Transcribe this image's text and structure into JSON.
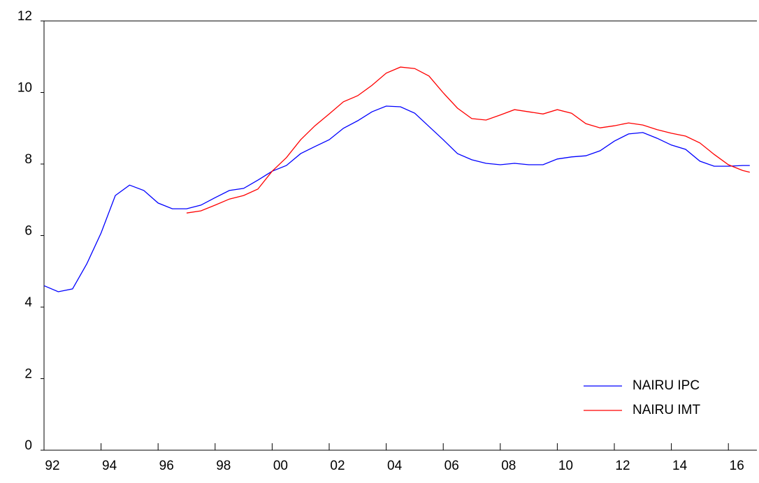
{
  "chart_data": {
    "type": "line",
    "x": [
      1992,
      1992.5,
      1993,
      1993.5,
      1994,
      1994.5,
      1995,
      1995.5,
      1996,
      1996.5,
      1997,
      1997.5,
      1998,
      1998.5,
      1999,
      1999.5,
      2000,
      2000.5,
      2001,
      2001.5,
      2002,
      2002.5,
      2003,
      2003.5,
      2004,
      2004.5,
      2005,
      2005.5,
      2006,
      2006.5,
      2007,
      2007.5,
      2008,
      2008.5,
      2009,
      2009.5,
      2010,
      2010.5,
      2011,
      2011.5,
      2012,
      2012.5,
      2013,
      2013.5,
      2014,
      2014.5,
      2015,
      2015.5,
      2016,
      2016.5,
      2016.75
    ],
    "series": [
      {
        "name": "NAIRU IPC",
        "color": "#0000ff",
        "values": [
          4.6,
          4.43,
          4.51,
          5.21,
          6.07,
          7.12,
          7.41,
          7.26,
          6.91,
          6.75,
          6.75,
          6.85,
          7.06,
          7.26,
          7.32,
          7.55,
          7.8,
          7.96,
          8.29,
          8.49,
          8.68,
          9.0,
          9.21,
          9.46,
          9.62,
          9.6,
          9.42,
          9.05,
          8.68,
          8.29,
          8.12,
          8.02,
          7.98,
          8.02,
          7.98,
          7.98,
          8.14,
          8.2,
          8.23,
          8.37,
          8.64,
          8.84,
          8.88,
          8.72,
          8.53,
          8.41,
          8.08,
          7.94,
          7.94,
          7.96,
          7.96
        ]
      },
      {
        "name": "NAIRU IMT",
        "color": "#ff0000",
        "values": [
          null,
          null,
          null,
          null,
          null,
          null,
          null,
          null,
          null,
          null,
          6.63,
          6.69,
          6.85,
          7.02,
          7.12,
          7.3,
          7.8,
          8.18,
          8.68,
          9.07,
          9.4,
          9.74,
          9.91,
          10.2,
          10.54,
          10.71,
          10.67,
          10.46,
          9.99,
          9.56,
          9.27,
          9.23,
          9.37,
          9.52,
          9.46,
          9.4,
          9.52,
          9.42,
          9.13,
          9.01,
          9.07,
          9.15,
          9.09,
          8.96,
          8.86,
          8.78,
          8.59,
          8.27,
          7.98,
          7.82,
          7.77
        ]
      }
    ],
    "xlim": [
      1992,
      2017
    ],
    "xticks": [
      {
        "value": 1992,
        "label": "92"
      },
      {
        "value": 1994,
        "label": "94"
      },
      {
        "value": 1996,
        "label": "96"
      },
      {
        "value": 1998,
        "label": "98"
      },
      {
        "value": 2000,
        "label": "00"
      },
      {
        "value": 2002,
        "label": "02"
      },
      {
        "value": 2004,
        "label": "04"
      },
      {
        "value": 2006,
        "label": "06"
      },
      {
        "value": 2008,
        "label": "08"
      },
      {
        "value": 2010,
        "label": "10"
      },
      {
        "value": 2012,
        "label": "12"
      },
      {
        "value": 2014,
        "label": "14"
      },
      {
        "value": 2016,
        "label": "16"
      }
    ],
    "ylim": [
      0,
      12
    ],
    "yticks": [
      0,
      2,
      4,
      6,
      8,
      10,
      12
    ],
    "legend": "lower right"
  }
}
